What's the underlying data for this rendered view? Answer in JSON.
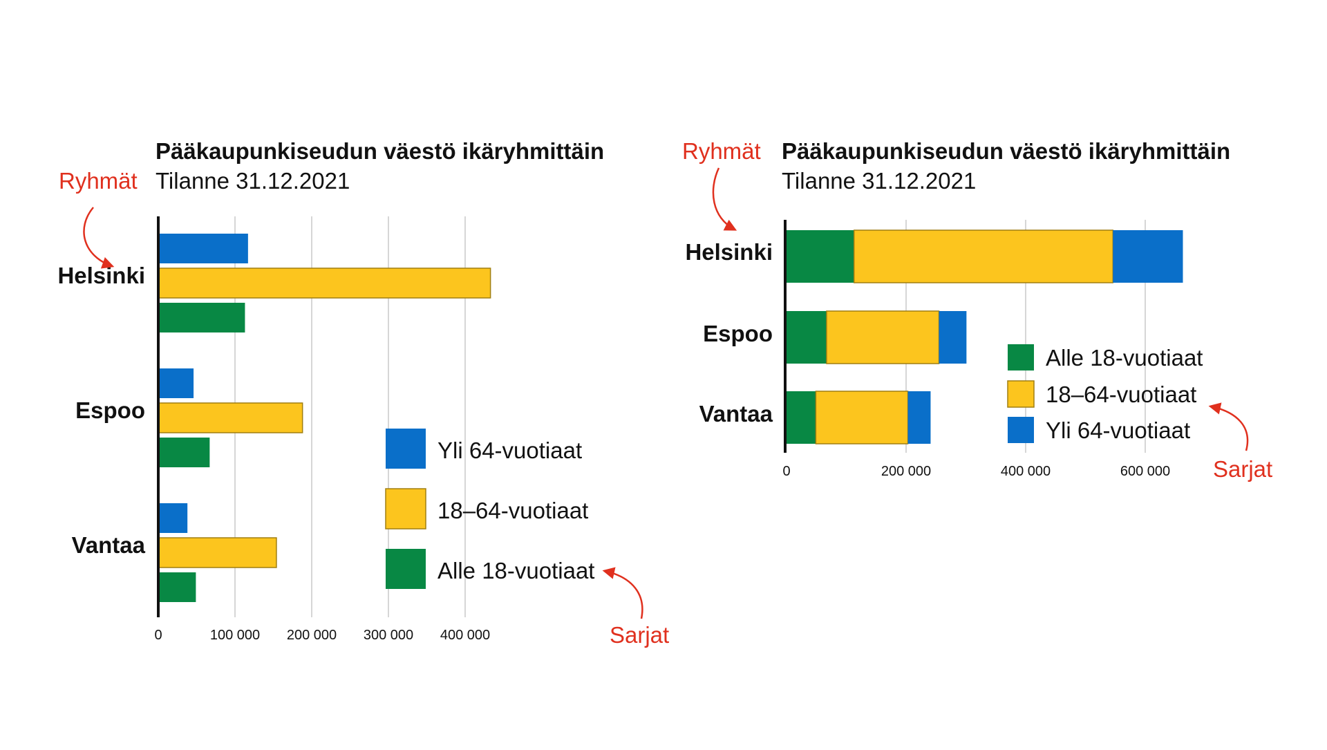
{
  "chart_data": [
    {
      "type": "bar",
      "orientation": "horizontal",
      "layout": "grouped",
      "title": "Pääkaupunkiseudun väestö ikäryhmittäin",
      "subtitle": "Tilanne 31.12.2021",
      "categories": [
        "Helsinki",
        "Espoo",
        "Vantaa"
      ],
      "series_order_in_group": [
        "Yli 64-vuotiaat",
        "18–64-vuotiaat",
        "Alle 18-vuotiaat"
      ],
      "series": [
        {
          "name": "Yli 64-vuotiaat",
          "color": "#0a6fc9",
          "values": [
            117000,
            46000,
            38000
          ]
        },
        {
          "name": "18–64-vuotiaat",
          "color": "#fcc51e",
          "values": [
            433000,
            188000,
            154000
          ]
        },
        {
          "name": "Alle 18-vuotiaat",
          "color": "#088844",
          "values": [
            113000,
            67000,
            49000
          ]
        }
      ],
      "x_ticks": [
        0,
        100000,
        200000,
        300000,
        400000
      ],
      "x_tick_labels": [
        "0",
        "100 000",
        "200 000",
        "300 000",
        "400 000"
      ],
      "xlim": [
        0,
        450000
      ],
      "grid": true,
      "legend": {
        "placement": "bottom-right",
        "order": [
          "Yli 64-vuotiaat",
          "18–64-vuotiaat",
          "Alle 18-vuotiaat"
        ]
      },
      "annotations": {
        "groups": "Ryhmät",
        "series": "Sarjat"
      }
    },
    {
      "type": "bar",
      "orientation": "horizontal",
      "layout": "stacked",
      "title": "Pääkaupunkiseudun väestö ikäryhmittäin",
      "subtitle": "Tilanne 31.12.2021",
      "categories": [
        "Helsinki",
        "Espoo",
        "Vantaa"
      ],
      "stack_order": [
        "Alle 18-vuotiaat",
        "18–64-vuotiaat",
        "Yli 64-vuotiaat"
      ],
      "series": [
        {
          "name": "Alle 18-vuotiaat",
          "color": "#088844",
          "values": [
            113000,
            67000,
            49000
          ]
        },
        {
          "name": "18–64-vuotiaat",
          "color": "#fcc51e",
          "values": [
            433000,
            188000,
            154000
          ]
        },
        {
          "name": "Yli 64-vuotiaat",
          "color": "#0a6fc9",
          "values": [
            117000,
            46000,
            38000
          ]
        }
      ],
      "x_ticks": [
        0,
        200000,
        400000,
        600000
      ],
      "x_tick_labels": [
        "0",
        "200 000",
        "400 000",
        "600 000"
      ],
      "xlim": [
        0,
        680000
      ],
      "grid": true,
      "legend": {
        "placement": "center-right",
        "order": [
          "Alle 18-vuotiaat",
          "18–64-vuotiaat",
          "Yli 64-vuotiaat"
        ]
      },
      "annotations": {
        "groups": "Ryhmät",
        "series": "Sarjat"
      }
    }
  ]
}
